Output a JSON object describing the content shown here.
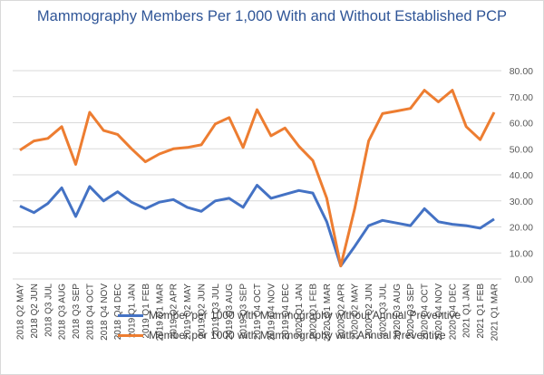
{
  "chart_data": {
    "type": "line",
    "title": "Mammography Members Per 1,000 With and Without Established PCP",
    "xlabel": "",
    "ylabel": "",
    "ylim": [
      0,
      80
    ],
    "yticks": [
      "0.00",
      "10.00",
      "20.00",
      "30.00",
      "40.00",
      "50.00",
      "60.00",
      "70.00",
      "80.00"
    ],
    "grid": true,
    "legend_position": "bottom",
    "categories": [
      "2018 Q2 MAY",
      "2018 Q2 JUN",
      "2018 Q3 JUL",
      "2018 Q3 AUG",
      "2018 Q3 SEP",
      "2018 Q4 OCT",
      "2018 Q4 NOV",
      "2018 Q4 DEC",
      "2019 Q1 JAN",
      "2019 Q1 FEB",
      "2019 Q1 MAR",
      "2019 Q2 APR",
      "2019 Q2 MAY",
      "2019 Q2 JUN",
      "2019 Q3 JUL",
      "2019 Q3 AUG",
      "2019 Q3 SEP",
      "2019 Q4 OCT",
      "2019 Q4 NOV",
      "2019 Q4 DEC",
      "2020 Q1 JAN",
      "2020 Q1 FEB",
      "2020 Q1 MAR",
      "2020 Q2 APR",
      "2020 Q2 MAY",
      "2020 Q2 JUN",
      "2020 Q3 JUL",
      "2020 Q3 AUG",
      "2020 Q3 SEP",
      "2020 Q4 OCT",
      "2020 Q4 NOV",
      "2020 Q4 DEC",
      "2021 Q1 JAN",
      "2021 Q1 FEB",
      "2021 Q1 MAR"
    ],
    "series": [
      {
        "name": "Member per 1000 with Mammography without Annual Preventive",
        "color": "#4472c4",
        "values": [
          28,
          25.5,
          29,
          35,
          24,
          35.5,
          30,
          33.5,
          29.5,
          27,
          29.5,
          30.5,
          27.5,
          26,
          30,
          31,
          27.5,
          36,
          31,
          32.5,
          34,
          33,
          22,
          5,
          12.5,
          20.5,
          22.5,
          21.5,
          20.5,
          27,
          22,
          21,
          20.5,
          19.5,
          23
        ]
      },
      {
        "name": "Member per 1000 with Mammography with Annual Preventive",
        "color": "#ed7d31",
        "values": [
          49.5,
          53,
          54,
          58.5,
          44,
          64,
          57,
          55.5,
          50,
          45,
          48,
          50,
          50.5,
          51.5,
          59.5,
          62,
          50.5,
          65,
          55,
          58,
          51,
          45.5,
          31,
          5,
          27,
          53,
          63.5,
          64.5,
          65.5,
          72.5,
          68,
          72.5,
          58.5,
          53.5,
          64
        ]
      }
    ]
  }
}
